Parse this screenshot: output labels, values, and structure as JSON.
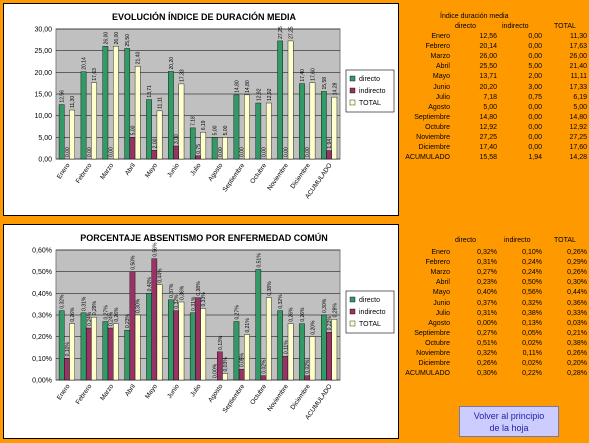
{
  "colors": {
    "directo": "#339966",
    "indirecto": "#993366",
    "total": "#FFFFCC",
    "plot_area": "#C0C0C0",
    "background": "#FF9900"
  },
  "months": [
    "Enero",
    "Febrero",
    "Marzo",
    "Abril",
    "Mayo",
    "Junio",
    "Julio",
    "Agosto",
    "Septiembre",
    "Octubre",
    "Noviembre",
    "Diciembre",
    "ACUMULADO"
  ],
  "chart_data": [
    {
      "type": "bar",
      "title": "EVOLUCIÓN ÍNDICE DE DURACIÓN MEDIA",
      "categories": [
        "Enero",
        "Febrero",
        "Marzo",
        "Abril",
        "Mayo",
        "Junio",
        "Julio",
        "Agosto",
        "Septiembre",
        "Octubre",
        "Noviembre",
        "Diciembre",
        "ACUMULADO"
      ],
      "series": [
        {
          "name": "directo",
          "values": [
            12.56,
            20.14,
            26.0,
            25.5,
            13.71,
            20.2,
            7.18,
            5.0,
            14.8,
            12.92,
            27.25,
            17.4,
            15.58
          ],
          "labels": [
            "12,56",
            "20,14",
            "26,00",
            "25,50",
            "13,71",
            "20,20",
            "7,18",
            "5,00",
            "14,80",
            "12,92",
            "27,25",
            "17,40",
            "15,58"
          ]
        },
        {
          "name": "indirecto",
          "values": [
            0,
            0,
            0,
            5.0,
            2.0,
            3.0,
            0.75,
            0,
            0,
            0,
            0,
            0,
            1.94
          ],
          "labels": [
            "0,00",
            "0,00",
            "0,00",
            "5,00",
            "2,00",
            "3,00",
            "0,75",
            "0,00",
            "0,00",
            "0,00",
            "0,00",
            "0,00",
            "1,94"
          ]
        },
        {
          "name": "TOTAL",
          "values": [
            11.3,
            17.63,
            26.0,
            21.4,
            11.11,
            17.33,
            6.19,
            5.0,
            14.8,
            12.92,
            27.25,
            17.6,
            14.28
          ],
          "labels": [
            "11,30",
            "17,63",
            "26,00",
            "21,40",
            "11,11",
            "17,33",
            "6,19",
            "5,00",
            "14,80",
            "12,92",
            "27,25",
            "17,60",
            "14,28"
          ]
        }
      ],
      "ylim": [
        0,
        30
      ],
      "yticks": [
        "0,00",
        "5,00",
        "10,00",
        "15,00",
        "20,00",
        "25,00",
        "30,00"
      ],
      "grid": true,
      "legend": "right"
    },
    {
      "type": "bar",
      "title": "PORCENTAJE ABSENTISMO POR ENFERMEDAD COMÚN",
      "categories": [
        "Enero",
        "Febrero",
        "Marzo",
        "Abril",
        "Mayo",
        "Junio",
        "Julio",
        "Agosto",
        "Septiembre",
        "Octubre",
        "Noviembre",
        "Diciembre",
        "ACUMULADO"
      ],
      "series": [
        {
          "name": "directo",
          "values": [
            0.32,
            0.31,
            0.27,
            0.23,
            0.4,
            0.37,
            0.31,
            0.0,
            0.27,
            0.51,
            0.32,
            0.26,
            0.3
          ],
          "labels": [
            "0,32%",
            "0,31%",
            "0,27%",
            "0,23%",
            "0,40%",
            "0,37%",
            "0,31%",
            "0,00%",
            "0,27%",
            "0,51%",
            "0,32%",
            "0,26%",
            "0,30%"
          ]
        },
        {
          "name": "indirecto",
          "values": [
            0.1,
            0.24,
            0.24,
            0.5,
            0.56,
            0.32,
            0.38,
            0.13,
            0.05,
            0.02,
            0.11,
            0.02,
            0.22
          ],
          "labels": [
            "0,10%",
            "0,24%",
            "0,24%",
            "0,50%",
            "0,56%",
            "0,32%",
            "0,38%",
            "0,13%",
            "0,05%",
            "0,02%",
            "0,11%",
            "0,02%",
            "0,22%"
          ]
        },
        {
          "name": "TOTAL",
          "values": [
            0.26,
            0.29,
            0.26,
            0.3,
            0.44,
            0.36,
            0.33,
            0.03,
            0.21,
            0.38,
            0.26,
            0.2,
            0.28
          ],
          "labels": [
            "0,26%",
            "0,29%",
            "0,26%",
            "0,30%",
            "0,44%",
            "0,36%",
            "0,33%",
            "0,03%",
            "0,21%",
            "0,38%",
            "0,26%",
            "0,20%",
            "0,28%"
          ]
        }
      ],
      "ylim": [
        0,
        0.6
      ],
      "yticks": [
        "0,00%",
        "0,10%",
        "0,20%",
        "0,30%",
        "0,40%",
        "0,50%",
        "0,60%"
      ],
      "grid": true,
      "legend": "right"
    }
  ],
  "table1": {
    "title": "Índice duración media",
    "headers": [
      "directo",
      "indirecto",
      "TOTAL"
    ],
    "rows": [
      [
        "Enero",
        "12,56",
        "0,00",
        "11,30"
      ],
      [
        "Febrero",
        "20,14",
        "0,00",
        "17,63"
      ],
      [
        "Marzo",
        "26,00",
        "0,00",
        "26,00"
      ],
      [
        "Abril",
        "25,50",
        "5,00",
        "21,40"
      ],
      [
        "Mayo",
        "13,71",
        "2,00",
        "11,11"
      ],
      [
        "Junio",
        "20,20",
        "3,00",
        "17,33"
      ],
      [
        "Julio",
        "7,18",
        "0,75",
        "6,19"
      ],
      [
        "Agosto",
        "5,00",
        "0,00",
        "5,00"
      ],
      [
        "Septiembre",
        "14,80",
        "0,00",
        "14,80"
      ],
      [
        "Octubre",
        "12,92",
        "0,00",
        "12,92"
      ],
      [
        "Noviembre",
        "27,25",
        "0,00",
        "27,25"
      ],
      [
        "Diciembre",
        "17,40",
        "0,00",
        "17,60"
      ],
      [
        "ACUMULADO",
        "15,58",
        "1,94",
        "14,28"
      ]
    ]
  },
  "table2": {
    "headers": [
      "directo",
      "indirecto",
      "TOTAL"
    ],
    "rows": [
      [
        "Enero",
        "0,32%",
        "0,10%",
        "0,26%"
      ],
      [
        "Febrero",
        "0,31%",
        "0,24%",
        "0,29%"
      ],
      [
        "Marzo",
        "0,27%",
        "0,24%",
        "0,26%"
      ],
      [
        "Abril",
        "0,23%",
        "0,50%",
        "0,30%"
      ],
      [
        "Mayo",
        "0,40%",
        "0,56%",
        "0,44%"
      ],
      [
        "Junio",
        "0,37%",
        "0,32%",
        "0,36%"
      ],
      [
        "Julio",
        "0,31%",
        "0,38%",
        "0,33%"
      ],
      [
        "Agosto",
        "0,00%",
        "0,13%",
        "0,03%"
      ],
      [
        "Septiembre",
        "0,27%",
        "0,05%",
        "0,21%"
      ],
      [
        "Octubre",
        "0,51%",
        "0,02%",
        "0,38%"
      ],
      [
        "Noviembre",
        "0,32%",
        "0,11%",
        "0,26%"
      ],
      [
        "Diciembre",
        "0,26%",
        "0,02%",
        "0,20%"
      ],
      [
        "ACUMULADO",
        "0,30%",
        "0,22%",
        "0,28%"
      ]
    ]
  },
  "button": {
    "line1": "Volver al principio",
    "line2": "de la hoja"
  }
}
